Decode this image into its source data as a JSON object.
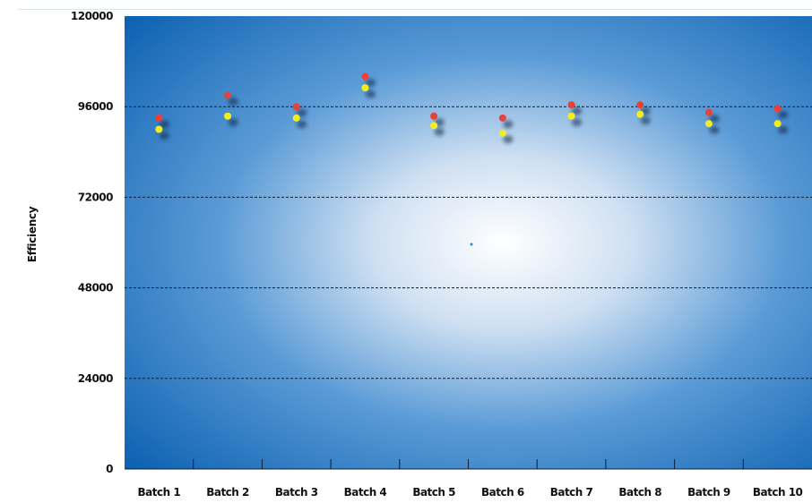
{
  "chart_data": {
    "type": "scatter",
    "ylabel": "Efficiency",
    "xlabel": "",
    "categories": [
      "Batch 1",
      "Batch 2",
      "Batch 3",
      "Batch 4",
      "Batch 5",
      "Batch 6",
      "Batch 7",
      "Batch 8",
      "Batch 9",
      "Batch 10"
    ],
    "y_ticks": [
      "0",
      "24000",
      "48000",
      "72000",
      "96000",
      "120000"
    ],
    "ylim": [
      0,
      120000
    ],
    "grid": "horizontal dashed at 24000, 48000, 72000, 96000",
    "legend": "none",
    "series": [
      {
        "color": "#e8413a",
        "values": [
          93000,
          99000,
          96000,
          104000,
          93500,
          93000,
          96500,
          96500,
          94500,
          95500
        ]
      },
      {
        "color": "#f2ee1e",
        "values": [
          90000,
          93500,
          93000,
          101000,
          91000,
          89000,
          93500,
          94000,
          91500,
          91500
        ]
      }
    ],
    "colors": {
      "plot_center": "#ffffff",
      "plot_edge": "#0a5fb0"
    }
  }
}
